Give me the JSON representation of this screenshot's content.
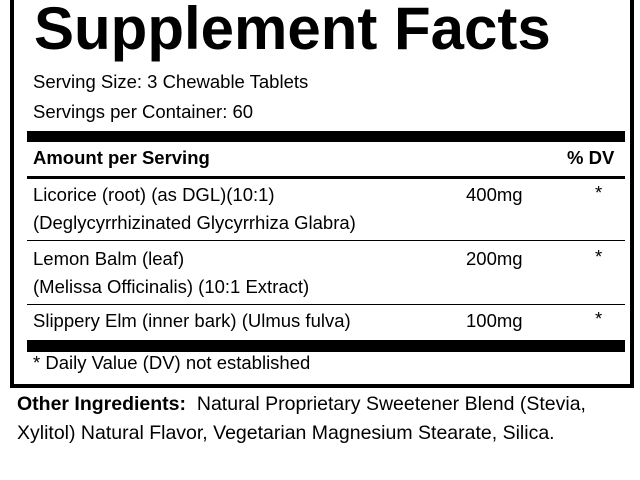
{
  "title": "Supplement Facts",
  "serving_size": "Serving Size:  3 Chewable Tablets",
  "servings_per_container": "Servings per Container: 60",
  "header": {
    "amount": "Amount per Serving",
    "dv": "% DV"
  },
  "ingredients": [
    {
      "line1": "Licorice (root) (as DGL)(10:1)",
      "line2": "(Deglycyrrhizinated Glycyrrhiza Glabra)",
      "amount": "400mg",
      "dv": "*"
    },
    {
      "line1": "Lemon Balm (leaf)",
      "line2": "(Melissa Officinalis) (10:1 Extract)",
      "amount": "200mg",
      "dv": "*"
    },
    {
      "line1": "Slippery Elm (inner bark) (Ulmus fulva)",
      "amount": "100mg",
      "dv": "*"
    }
  ],
  "footnote": "* Daily Value (DV) not established",
  "other_ingredients": {
    "label": "Other Ingredients:",
    "text": "Natural Proprietary Sweetener Blend (Stevia, Xylitol) Natural Flavor, Vegetarian Magnesium Stearate, Silica."
  }
}
